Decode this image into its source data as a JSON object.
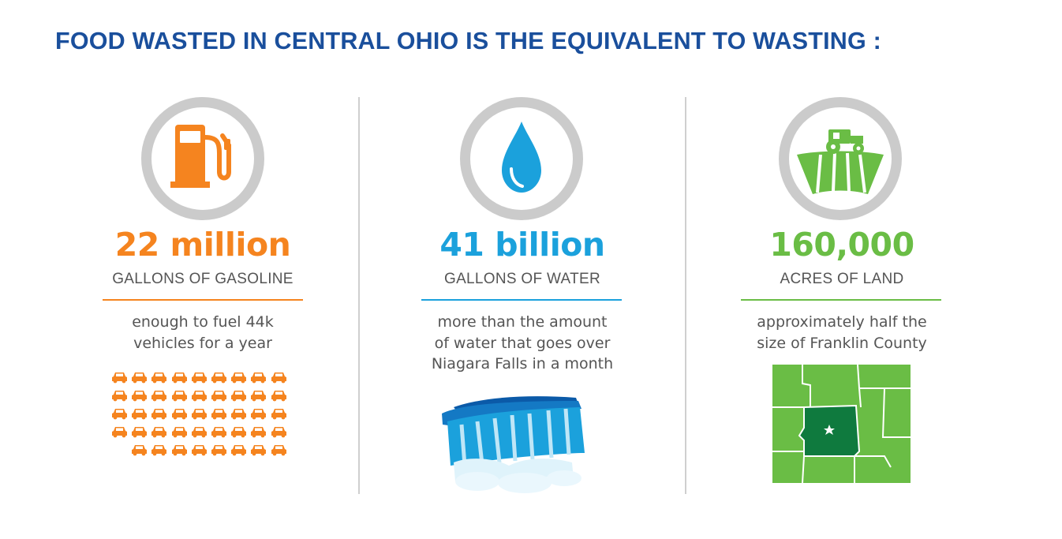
{
  "title": "FOOD WASTED IN CENTRAL OHIO IS THE EQUIVALENT TO WASTING :",
  "colors": {
    "title": "#1a4f9c",
    "ring": "#cbcbcb",
    "gasoline": "#f5841f",
    "water": "#1ba1dc",
    "land": "#6abd45",
    "land_dark": "#0f7a3e",
    "text": "#555555"
  },
  "stats": [
    {
      "value": "22 million",
      "unit": "GALLONS OF GASOLINE",
      "desc_lines": [
        "enough to fuel 44k",
        "vehicles for a year"
      ],
      "icon": "gas-pump-icon",
      "illustration": "car-grid"
    },
    {
      "value": "41 billion",
      "unit": "GALLONS OF WATER",
      "desc_lines": [
        "more than the amount",
        "of water that goes over",
        "Niagara Falls in a month"
      ],
      "icon": "water-drop-icon",
      "illustration": "waterfall"
    },
    {
      "value": "160,000",
      "unit": "ACRES OF LAND",
      "desc_lines": [
        "approximately half the",
        "size of Franklin County"
      ],
      "icon": "tractor-field-icon",
      "illustration": "county-map"
    }
  ],
  "car_rows": [
    9,
    9,
    9,
    9,
    8
  ]
}
